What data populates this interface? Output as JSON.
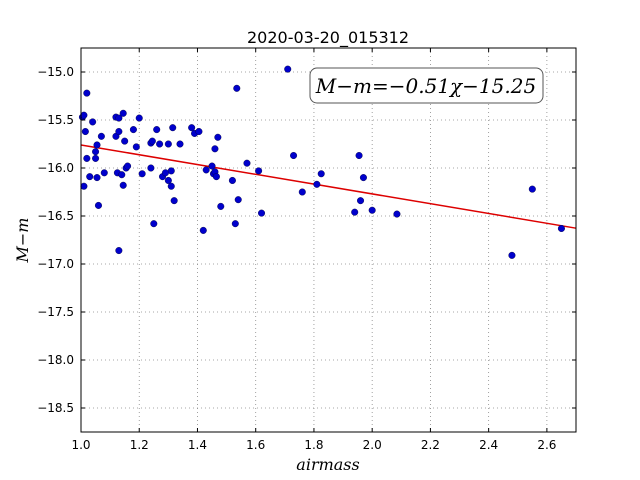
{
  "chart_data": {
    "type": "scatter",
    "title": "2020-03-20_015312",
    "xlabel": "airmass",
    "ylabel": "M−m",
    "xlim": [
      1.0,
      2.7
    ],
    "ylim": [
      -14.75,
      -18.75
    ],
    "y_inverted": true,
    "grid": true,
    "x_ticks": [
      1.0,
      1.2,
      1.4,
      1.6,
      1.8,
      2.0,
      2.2,
      2.4,
      2.6
    ],
    "x_tick_labels": [
      "1.0",
      "1.2",
      "1.4",
      "1.6",
      "1.8",
      "2.0",
      "2.2",
      "2.4",
      "2.6"
    ],
    "y_ticks": [
      -15.0,
      -15.5,
      -16.0,
      -16.5,
      -17.0,
      -17.5,
      -18.0,
      -18.5
    ],
    "y_tick_labels": [
      "−15.0",
      "−15.5",
      "−16.0",
      "−16.5",
      "−17.0",
      "−17.5",
      "−18.0",
      "−18.5"
    ],
    "annotation": "M−m=−0.51χ−15.25",
    "annotation_position": "top-right",
    "marker_color": "#0000cc",
    "fit_color": "#dd0000",
    "fit": {
      "slope": -0.51,
      "intercept": -15.25
    },
    "points": [
      [
        1.005,
        -15.47
      ],
      [
        1.01,
        -15.45
      ],
      [
        1.01,
        -16.19
      ],
      [
        1.02,
        -15.22
      ],
      [
        1.015,
        -15.62
      ],
      [
        1.02,
        -15.9
      ],
      [
        1.03,
        -16.09
      ],
      [
        1.04,
        -15.52
      ],
      [
        1.05,
        -15.83
      ],
      [
        1.05,
        -15.9
      ],
      [
        1.055,
        -15.76
      ],
      [
        1.055,
        -16.1
      ],
      [
        1.06,
        -16.39
      ],
      [
        1.07,
        -15.67
      ],
      [
        1.08,
        -16.05
      ],
      [
        1.12,
        -15.47
      ],
      [
        1.12,
        -15.67
      ],
      [
        1.125,
        -16.05
      ],
      [
        1.13,
        -15.48
      ],
      [
        1.13,
        -15.62
      ],
      [
        1.13,
        -16.86
      ],
      [
        1.14,
        -16.07
      ],
      [
        1.145,
        -15.43
      ],
      [
        1.145,
        -16.18
      ],
      [
        1.15,
        -15.72
      ],
      [
        1.155,
        -16.0
      ],
      [
        1.16,
        -15.98
      ],
      [
        1.18,
        -15.6
      ],
      [
        1.19,
        -15.78
      ],
      [
        1.2,
        -15.48
      ],
      [
        1.21,
        -16.06
      ],
      [
        1.24,
        -16.0
      ],
      [
        1.24,
        -15.74
      ],
      [
        1.245,
        -15.72
      ],
      [
        1.25,
        -16.58
      ],
      [
        1.26,
        -15.6
      ],
      [
        1.27,
        -15.75
      ],
      [
        1.28,
        -16.09
      ],
      [
        1.29,
        -16.05
      ],
      [
        1.3,
        -15.75
      ],
      [
        1.3,
        -16.13
      ],
      [
        1.31,
        -16.03
      ],
      [
        1.31,
        -16.19
      ],
      [
        1.315,
        -15.58
      ],
      [
        1.32,
        -16.34
      ],
      [
        1.34,
        -15.75
      ],
      [
        1.38,
        -15.58
      ],
      [
        1.39,
        -15.64
      ],
      [
        1.405,
        -15.62
      ],
      [
        1.42,
        -16.65
      ],
      [
        1.43,
        -16.02
      ],
      [
        1.45,
        -15.98
      ],
      [
        1.455,
        -16.06
      ],
      [
        1.46,
        -15.8
      ],
      [
        1.46,
        -16.04
      ],
      [
        1.465,
        -16.09
      ],
      [
        1.47,
        -15.68
      ],
      [
        1.48,
        -16.4
      ],
      [
        1.52,
        -16.13
      ],
      [
        1.53,
        -16.58
      ],
      [
        1.535,
        -15.17
      ],
      [
        1.54,
        -16.33
      ],
      [
        1.57,
        -15.95
      ],
      [
        1.61,
        -16.03
      ],
      [
        1.62,
        -16.47
      ],
      [
        1.71,
        -14.97
      ],
      [
        1.73,
        -15.87
      ],
      [
        1.76,
        -16.25
      ],
      [
        1.81,
        -16.17
      ],
      [
        1.825,
        -16.06
      ],
      [
        1.94,
        -16.46
      ],
      [
        1.955,
        -15.87
      ],
      [
        1.96,
        -16.34
      ],
      [
        1.97,
        -16.1
      ],
      [
        2.0,
        -16.44
      ],
      [
        2.085,
        -16.48
      ],
      [
        2.48,
        -16.91
      ],
      [
        2.55,
        -16.22
      ],
      [
        2.65,
        -16.63
      ]
    ]
  }
}
